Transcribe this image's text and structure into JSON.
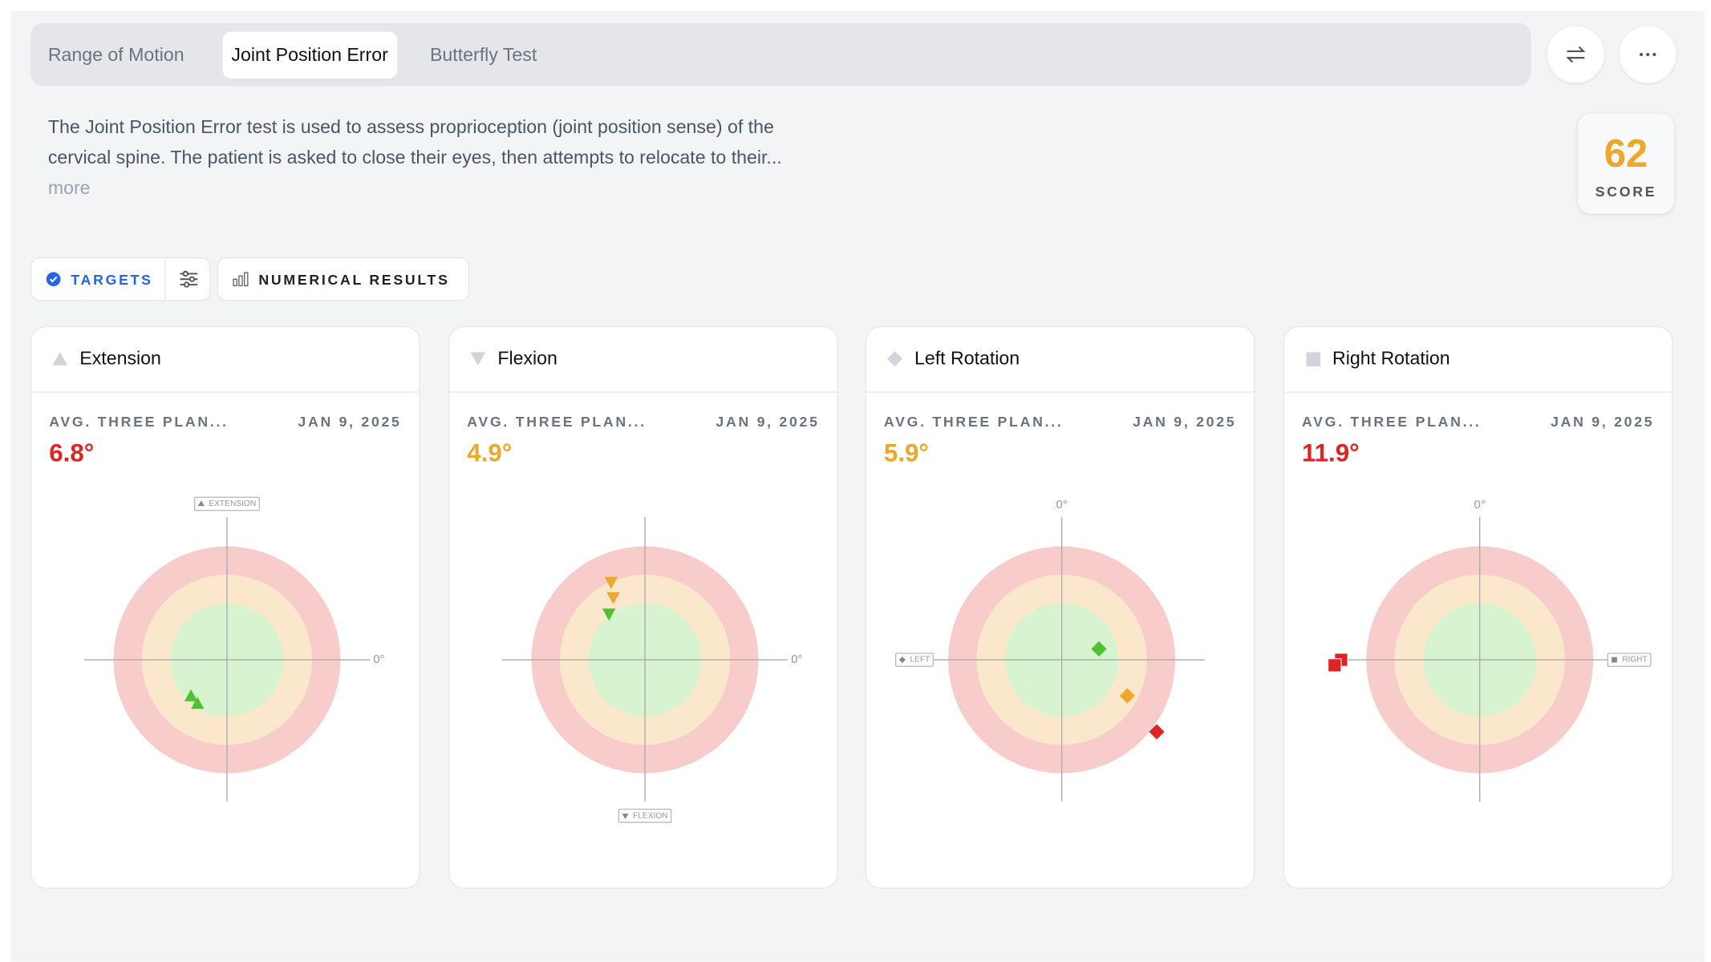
{
  "tabs": [
    "Range of Motion",
    "Joint Position Error",
    "Butterfly Test"
  ],
  "description_lines": [
    "The Joint Position Error test is used to assess proprioception (joint position sense) of the",
    "cervical spine. The patient is asked to close their eyes, then attempts to relocate to their..."
  ],
  "more": "more",
  "score": {
    "value": "62",
    "label": "SCORE",
    "color": "#eea62b"
  },
  "toolbar": {
    "targets": "TARGETS",
    "numerical_results": "NUMERICAL RESULTS"
  },
  "cards": [
    {
      "title": "Extension",
      "metric": "AVG. THREE PLAN...",
      "date": "JAN 9, 2025",
      "value": "6.8°",
      "value_color": "#e02424",
      "axis_labels": [
        "EXTENSION",
        "0°"
      ]
    },
    {
      "title": "Flexion",
      "metric": "AVG. THREE PLAN...",
      "date": "JAN 9, 2025",
      "value": "4.9°",
      "value_color": "#eea62b",
      "axis_labels": [
        "FLEXION",
        "0°"
      ]
    },
    {
      "title": "Left Rotation",
      "metric": "AVG. THREE PLAN...",
      "date": "JAN 9, 2025",
      "value": "5.9°",
      "value_color": "#eea62b",
      "axis_labels": [
        "0°",
        "LEFT"
      ]
    },
    {
      "title": "Right Rotation",
      "metric": "AVG. THREE PLAN...",
      "date": "JAN 9, 2025",
      "value": "11.9°",
      "value_color": "#e02424",
      "axis_labels": [
        "0°",
        "RIGHT"
      ]
    }
  ]
}
